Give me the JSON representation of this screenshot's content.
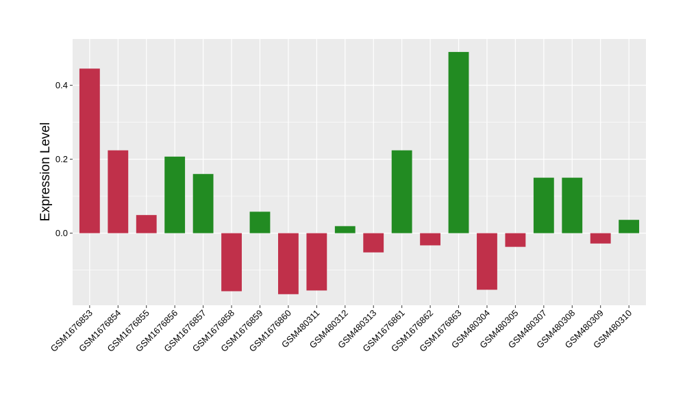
{
  "chart_data": {
    "type": "bar",
    "title": "",
    "xlabel": "",
    "ylabel": "Expression Level",
    "categories": [
      "GSM1676853",
      "GSM1676854",
      "GSM1676855",
      "GSM1676856",
      "GSM1676857",
      "GSM1676858",
      "GSM1676859",
      "GSM1676860",
      "GSM480311",
      "GSM480312",
      "GSM480313",
      "GSM1676861",
      "GSM1676862",
      "GSM1676863",
      "GSM480304",
      "GSM480305",
      "GSM480307",
      "GSM480308",
      "GSM480309",
      "GSM480310"
    ],
    "values": [
      0.445,
      0.224,
      0.049,
      0.207,
      0.16,
      -0.157,
      0.058,
      -0.165,
      -0.155,
      0.019,
      -0.052,
      0.224,
      -0.033,
      0.49,
      -0.153,
      -0.037,
      0.15,
      0.15,
      -0.028,
      0.036
    ],
    "colors": [
      "#C0304A",
      "#C0304A",
      "#C0304A",
      "#228B22",
      "#228B22",
      "#C0304A",
      "#228B22",
      "#C0304A",
      "#C0304A",
      "#228B22",
      "#C0304A",
      "#228B22",
      "#C0304A",
      "#228B22",
      "#C0304A",
      "#C0304A",
      "#228B22",
      "#228B22",
      "#C0304A",
      "#228B22"
    ],
    "ylim": [
      -0.195,
      0.525
    ],
    "yticks": [
      0.0,
      0.2,
      0.4
    ],
    "ytick_labels": [
      "0.0",
      "0.2",
      "0.4"
    ],
    "grid": true,
    "panel_background": "#EBEBEB",
    "grid_color": "#FFFFFF",
    "legend": "none"
  }
}
